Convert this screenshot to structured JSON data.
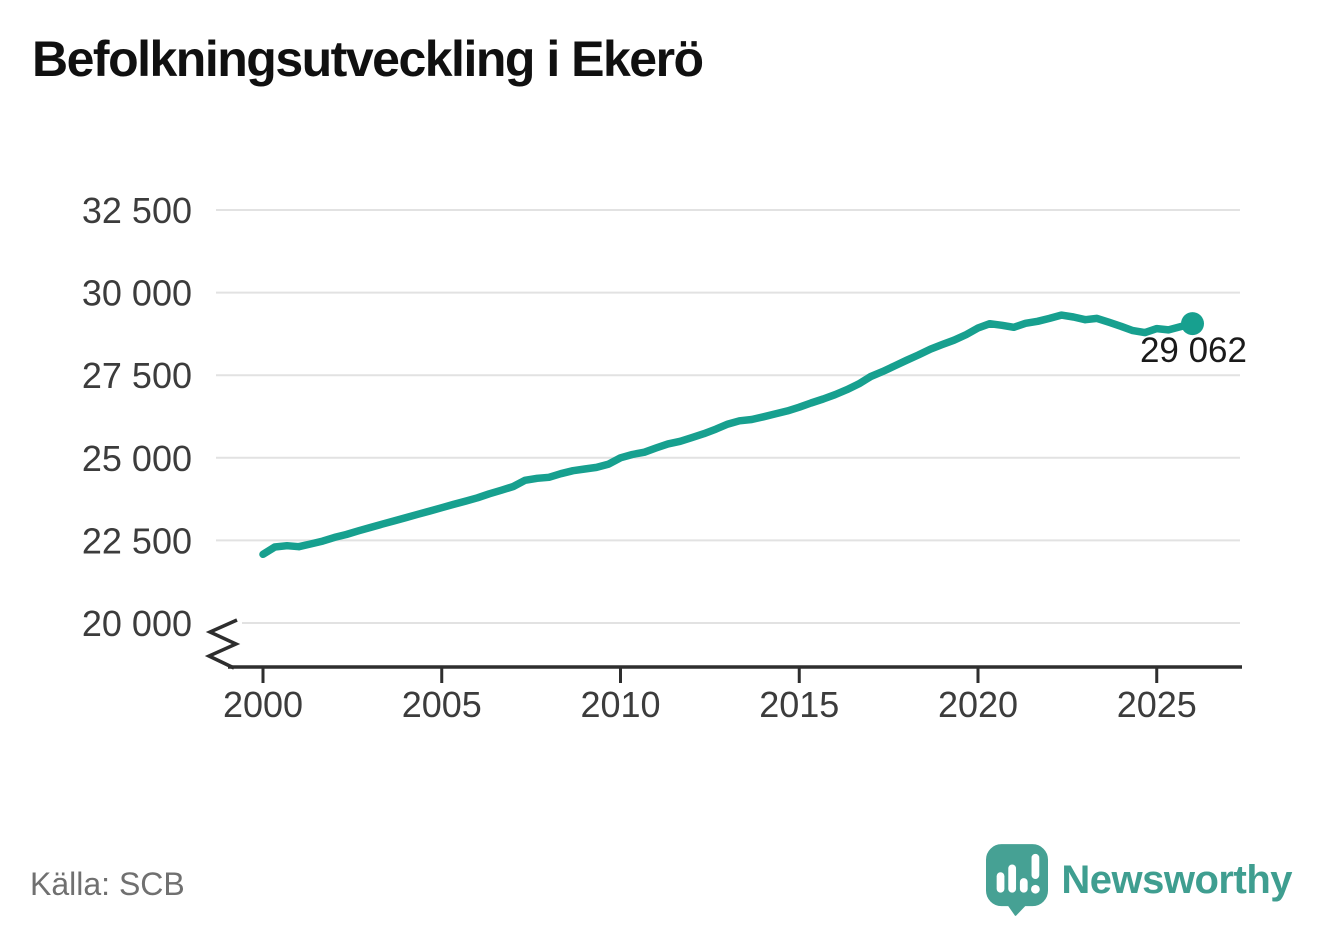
{
  "title": "Befolkningsutveckling i Ekerö",
  "source": "Källa: SCB",
  "branding": {
    "wordmark": "Newsworthy",
    "icon": "newsworthy-speech-bubble-bar-chart-icon"
  },
  "colors": {
    "background": "#ffffff",
    "title": "#101010",
    "line": "#17a08f",
    "grid": "#e2e2e2",
    "axis": "#2e2e2e",
    "tick_label": "#3c3c3c",
    "end_label": "#1a1a1a",
    "source": "#707070",
    "logo_bubble": "#46a194",
    "logo_text": "#3f9e90",
    "logo_glyph": "#ffffff"
  },
  "chart_data": {
    "type": "line",
    "title": "Befolkningsutveckling i Ekerö",
    "xlabel": "",
    "ylabel": "",
    "grid": "horizontal",
    "legend": "none",
    "axis_break_at_bottom": true,
    "xlim": [
      1999.7,
      2027.3
    ],
    "ylim": [
      20000,
      32500
    ],
    "x_ticks": [
      2000,
      2005,
      2010,
      2015,
      2020,
      2025
    ],
    "x_tick_labels": [
      "2000",
      "2005",
      "2010",
      "2015",
      "2020",
      "2025"
    ],
    "y_ticks": [
      20000,
      22500,
      25000,
      27500,
      30000,
      32500
    ],
    "y_tick_labels": [
      "20 000",
      "22 500",
      "25 000",
      "27 500",
      "30 000",
      "32 500"
    ],
    "end_label": "29 062",
    "end_value": 29062,
    "x": [
      2000,
      2000.33,
      2000.67,
      2001,
      2001.33,
      2001.67,
      2002,
      2002.33,
      2002.67,
      2003,
      2003.33,
      2003.67,
      2004,
      2004.33,
      2004.67,
      2005,
      2005.33,
      2005.67,
      2006,
      2006.33,
      2006.67,
      2007,
      2007.33,
      2007.67,
      2008,
      2008.33,
      2008.67,
      2009,
      2009.33,
      2009.67,
      2010,
      2010.33,
      2010.67,
      2011,
      2011.33,
      2011.67,
      2012,
      2012.33,
      2012.67,
      2013,
      2013.33,
      2013.67,
      2014,
      2014.33,
      2014.67,
      2015,
      2015.33,
      2015.67,
      2016,
      2016.33,
      2016.67,
      2017,
      2017.33,
      2017.67,
      2018,
      2018.33,
      2018.67,
      2019,
      2019.33,
      2019.67,
      2020,
      2020.33,
      2020.67,
      2021,
      2021.33,
      2021.67,
      2022,
      2022.33,
      2022.67,
      2023,
      2023.33,
      2023.67,
      2024,
      2024.33,
      2024.67,
      2025,
      2025.33,
      2025.67,
      2026
    ],
    "values": [
      22080,
      22300,
      22340,
      22310,
      22390,
      22480,
      22590,
      22680,
      22790,
      22890,
      22990,
      23090,
      23190,
      23290,
      23390,
      23490,
      23590,
      23690,
      23790,
      23910,
      24020,
      24130,
      24320,
      24380,
      24410,
      24520,
      24610,
      24660,
      24710,
      24810,
      25000,
      25100,
      25170,
      25300,
      25420,
      25500,
      25610,
      25730,
      25870,
      26020,
      26120,
      26160,
      26240,
      26330,
      26420,
      26530,
      26660,
      26780,
      26910,
      27060,
      27240,
      27460,
      27610,
      27780,
      27950,
      28110,
      28290,
      28430,
      28560,
      28730,
      28930,
      29060,
      29010,
      28950,
      29070,
      29130,
      29220,
      29320,
      29260,
      29180,
      29220,
      29100,
      28980,
      28850,
      28790,
      28910,
      28870,
      28970,
      29062
    ]
  }
}
